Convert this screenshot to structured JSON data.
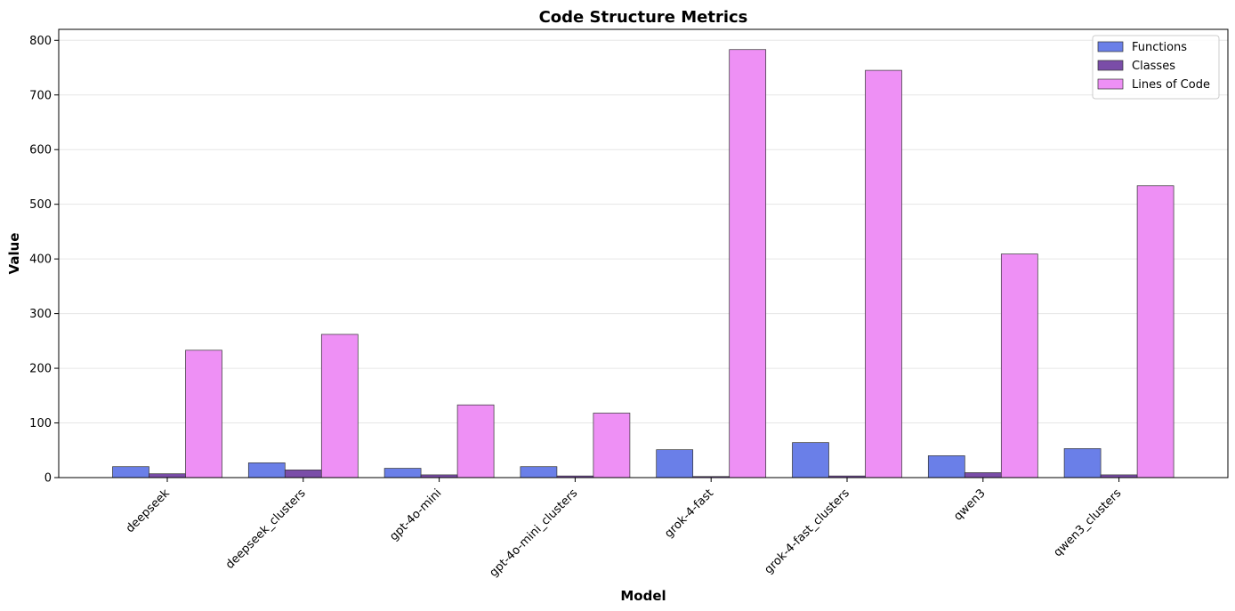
{
  "chart_data": {
    "type": "bar",
    "title": "Code Structure Metrics",
    "xlabel": "Model",
    "ylabel": "Value",
    "ylim": [
      0,
      820
    ],
    "yticks": [
      0,
      100,
      200,
      300,
      400,
      500,
      600,
      700,
      800
    ],
    "grid": "y",
    "legend_placement": "top-right",
    "categories": [
      "deepseek",
      "deepseek_clusters",
      "gpt-4o-mini",
      "gpt-4o-mini_clusters",
      "grok-4-fast",
      "grok-4-fast_clusters",
      "qwen3",
      "qwen3_clusters"
    ],
    "series": [
      {
        "name": "Functions",
        "color": "#6a7fe8",
        "values": [
          20,
          27,
          17,
          20,
          51,
          64,
          40,
          53
        ]
      },
      {
        "name": "Classes",
        "color": "#7a4da8",
        "values": [
          7,
          14,
          5,
          3,
          2,
          3,
          9,
          5
        ]
      },
      {
        "name": "Lines of Code",
        "color": "#ee90f5",
        "values": [
          233,
          262,
          133,
          118,
          783,
          745,
          409,
          534
        ]
      }
    ]
  }
}
